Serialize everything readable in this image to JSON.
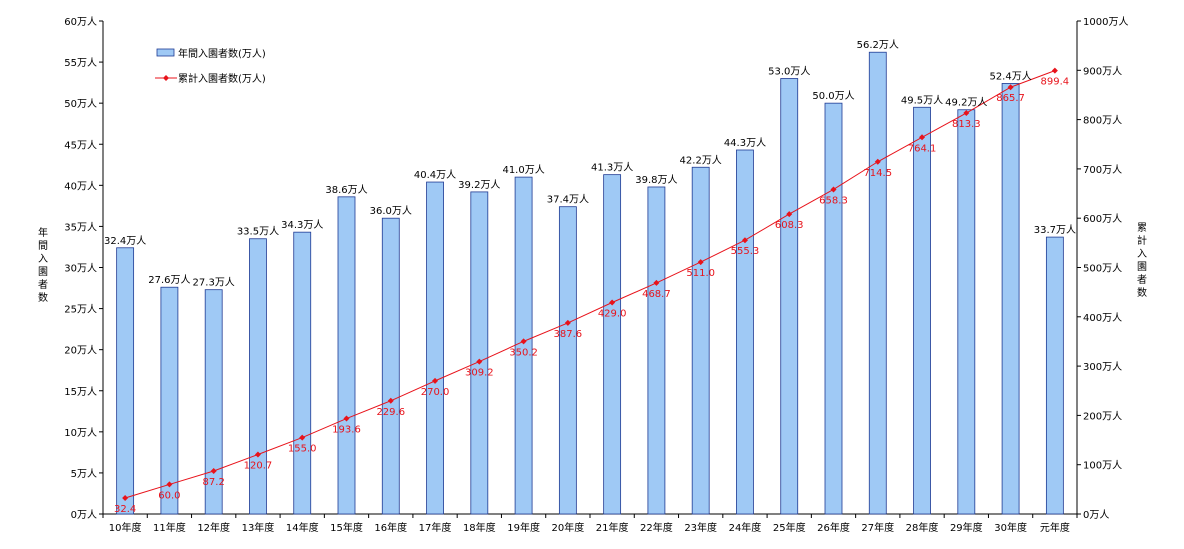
{
  "chart_data": {
    "type": "bar",
    "categories": [
      "10年度",
      "11年度",
      "12年度",
      "13年度",
      "14年度",
      "15年度",
      "16年度",
      "17年度",
      "18年度",
      "19年度",
      "20年度",
      "21年度",
      "22年度",
      "23年度",
      "24年度",
      "25年度",
      "26年度",
      "27年度",
      "28年度",
      "29年度",
      "30年度",
      "元年度"
    ],
    "series": [
      {
        "name": "年間入園者数(万人)",
        "type": "bar",
        "axis": "left",
        "values": [
          32.4,
          27.6,
          27.3,
          33.5,
          34.3,
          38.6,
          36.0,
          40.4,
          39.2,
          41.0,
          37.4,
          41.3,
          39.8,
          42.2,
          44.3,
          53.0,
          50.0,
          56.2,
          49.5,
          49.2,
          52.4,
          33.7
        ],
        "labels": [
          "32.4万人",
          "27.6万人",
          "27.3万人",
          "33.5万人",
          "34.3万人",
          "38.6万人",
          "36.0万人",
          "40.4万人",
          "39.2万人",
          "41.0万人",
          "37.4万人",
          "41.3万人",
          "39.8万人",
          "42.2万人",
          "44.3万人",
          "53.0万人",
          "50.0万人",
          "56.2万人",
          "49.5万人",
          "49.2万人",
          "52.4万人",
          "33.7万人"
        ],
        "color": "#9fc9f5"
      },
      {
        "name": "累計入園者数(万人)",
        "type": "line",
        "axis": "right",
        "values": [
          32.4,
          60.0,
          87.2,
          120.7,
          155.0,
          193.6,
          229.6,
          270.0,
          309.2,
          350.2,
          387.6,
          429.0,
          468.7,
          511.0,
          555.3,
          608.3,
          658.3,
          714.5,
          764.1,
          813.3,
          865.7,
          899.4
        ],
        "labels": [
          "32.4",
          "60.0",
          "87.2",
          "120.7",
          "155.0",
          "193.6",
          "229.6",
          "270.0",
          "309.2",
          "350.2",
          "387.6",
          "429.0",
          "468.7",
          "511.0",
          "555.3",
          "608.3",
          "658.3",
          "714.5",
          "764.1",
          "813.3",
          "865.7",
          "899.4"
        ],
        "color": "#e8131b"
      }
    ],
    "ylabel_left": "年間入園者数",
    "ylabel_right": "累計入園者数",
    "ylim_left": [
      0,
      60
    ],
    "ylim_right": [
      0,
      1000
    ],
    "yticks_left": [
      "0万人",
      "5万人",
      "10万人",
      "15万人",
      "20万人",
      "25万人",
      "30万人",
      "35万人",
      "40万人",
      "45万人",
      "50万人",
      "55万人",
      "60万人"
    ],
    "yticks_right": [
      "0万人",
      "100万人",
      "200万人",
      "300万人",
      "400万人",
      "500万人",
      "600万人",
      "700万人",
      "800万人",
      "900万人",
      "1000万人"
    ],
    "grid": false,
    "legend_placement": "top-left"
  }
}
